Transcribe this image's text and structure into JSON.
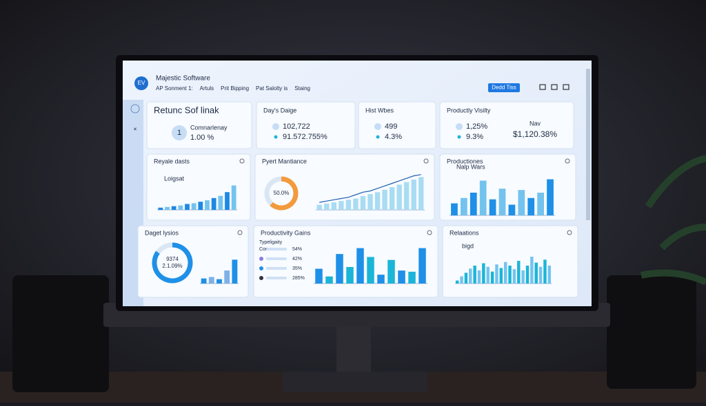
{
  "header": {
    "logo": "EV",
    "app_name": "Majestic Software",
    "nav": [
      "AP Sonment 1:",
      "Artuls",
      "Prit Bipping",
      "Pat Salolty is",
      "Staing"
    ],
    "button": "Dedd Tiss"
  },
  "stats": [
    {
      "title": "Retunc Sof linak",
      "badge": "1",
      "label": "Comnarlenay",
      "value": "1.00 %"
    },
    {
      "title": "Day's Daige",
      "rows": [
        "102,722",
        "91.572.755%"
      ]
    },
    {
      "title": "Hist Wbes",
      "rows": [
        "499",
        "4.3%"
      ]
    },
    {
      "title": "Productly Visilty",
      "rows": [
        "1,25%",
        "9.3%"
      ],
      "side_label": "Nav",
      "side_value": "$1,120.38%"
    }
  ],
  "charts": [
    {
      "type": "bar",
      "title": "Reyale dasts",
      "legend": "Loigsat",
      "ylim": [
        0,
        40
      ],
      "color": "#1e88e5",
      "values": [
        3,
        4,
        5,
        6,
        8,
        9,
        11,
        13,
        16,
        19,
        24,
        33
      ]
    },
    {
      "type": "donut-line",
      "title": "Pyert Mantiance",
      "donut_label": "50.0%",
      "donut_value": 62,
      "color": "#f39a3c",
      "ylim": [
        0,
        60
      ],
      "values": [
        8,
        10,
        12,
        14,
        16,
        18,
        22,
        25,
        28,
        32,
        36,
        40,
        44,
        48,
        52
      ],
      "line": [
        12,
        14,
        16,
        18,
        20,
        24,
        28,
        30,
        34,
        38,
        42,
        46,
        50,
        54,
        56
      ]
    },
    {
      "type": "bar",
      "title": "Productiones",
      "legend": "Nalp Wars",
      "ylim": [
        0,
        350
      ],
      "color": "#1e90e8",
      "values": [
        90,
        130,
        170,
        260,
        120,
        200,
        80,
        190,
        130,
        170,
        270
      ]
    },
    {
      "type": "donut-bar",
      "title": "Daget lysios",
      "donut_labels": [
        "9374",
        "2.1.09%"
      ],
      "donut_value": 85,
      "color": "#1e90e8",
      "ylim": [
        0,
        40
      ],
      "values": [
        7,
        9,
        6,
        18,
        33
      ]
    },
    {
      "type": "list-bar",
      "title": "Productivity Gains",
      "list_title": "Typeligaity",
      "list_label": "Conses",
      "rows": [
        "54%",
        "42%",
        "35%",
        "285%"
      ],
      "ylim": [
        0,
        70
      ],
      "color": "#1e90e8",
      "values": [
        25,
        12,
        50,
        28,
        60,
        45,
        15,
        40,
        22,
        20,
        60
      ]
    },
    {
      "type": "bar",
      "title": "Relaations",
      "legend": "bigd",
      "ylim": [
        0,
        60
      ],
      "color": "#1bb5d8",
      "values": [
        5,
        12,
        18,
        25,
        30,
        22,
        34,
        28,
        20,
        32,
        26,
        36,
        30,
        24,
        38,
        22,
        30,
        45,
        35,
        28,
        40,
        30
      ]
    }
  ]
}
